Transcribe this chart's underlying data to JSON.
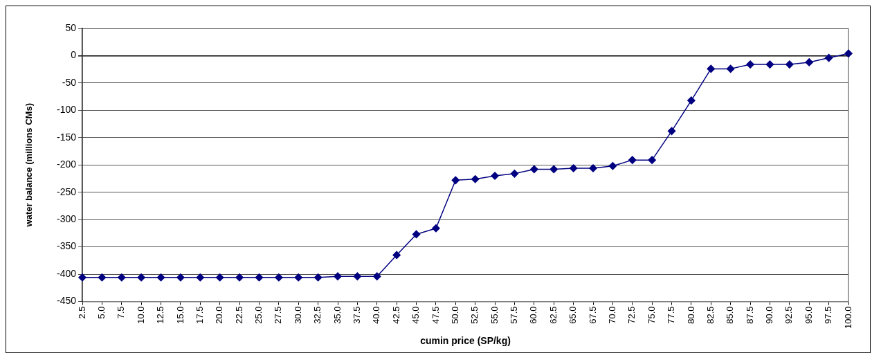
{
  "chart_data": {
    "type": "line",
    "xlabel": "cumin price (SP/kg)",
    "ylabel": "water balance (millions CMs)",
    "categories": [
      "2.5",
      "5.0",
      "7.5",
      "10.0",
      "12.5",
      "15.0",
      "17.5",
      "20.0",
      "22.5",
      "25.0",
      "27.5",
      "30.0",
      "32.5",
      "35.0",
      "37.5",
      "40.0",
      "42.5",
      "45.0",
      "47.5",
      "50.0",
      "52.5",
      "55.0",
      "57.5",
      "60.0",
      "62.5",
      "65.0",
      "67.5",
      "70.0",
      "72.5",
      "75.0",
      "77.5",
      "80.0",
      "82.5",
      "85.0",
      "87.5",
      "90.0",
      "92.5",
      "95.0",
      "97.5",
      "100.0"
    ],
    "series": [
      {
        "color": "#000080",
        "values": [
          -406,
          -406,
          -406,
          -406,
          -406,
          -406,
          -406,
          -406,
          -406,
          -406,
          -406,
          -406,
          -406,
          -404,
          -404,
          -404,
          -365,
          -327,
          -316,
          -228,
          -226,
          -220,
          -216,
          -208,
          -208,
          -206,
          -206,
          -202,
          -191,
          -191,
          -138,
          -82,
          -24,
          -24,
          -16,
          -16,
          -16,
          -12,
          -4,
          4
        ]
      }
    ],
    "ylim": [
      -450,
      50
    ],
    "yticks": [
      -450,
      -400,
      -350,
      -300,
      -250,
      -200,
      -150,
      -100,
      -50,
      0,
      50
    ],
    "grid": "y",
    "marker": "diamond",
    "line_style": "solid"
  }
}
